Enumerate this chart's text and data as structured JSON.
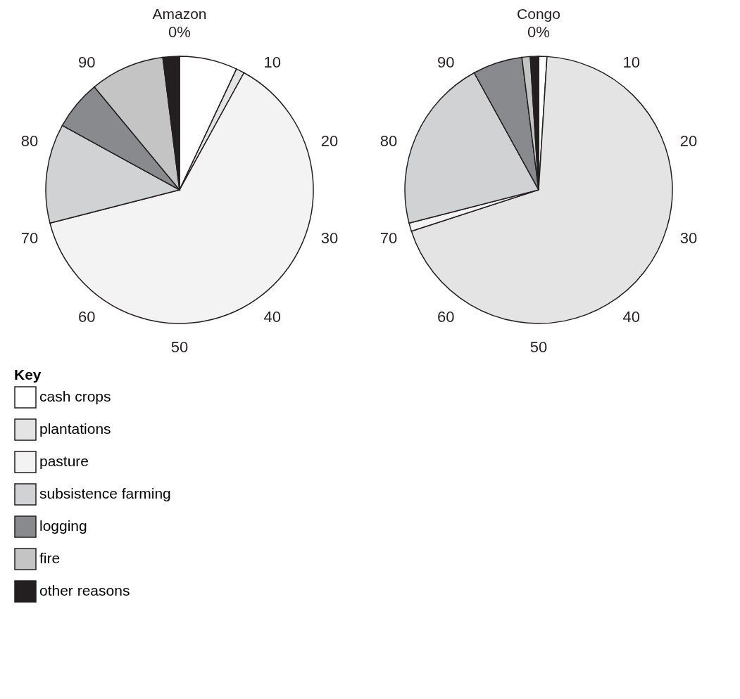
{
  "chart_data": [
    {
      "type": "pie",
      "title": "Amazon",
      "legend_title": "Key",
      "legend": "bottom left",
      "categories": [
        "cash crops",
        "plantations",
        "pasture",
        "subsistence farming",
        "logging",
        "fire",
        "other reasons"
      ],
      "values": [
        7,
        1,
        63,
        12,
        6,
        9,
        2
      ],
      "colors": [
        "#ffffff",
        "#e4e4e4",
        "#f3f3f3",
        "#d1d2d4",
        "#898a8e",
        "#c4c4c4",
        "#231f20"
      ],
      "annotations": [
        "0%",
        "10",
        "20",
        "30",
        "40",
        "50",
        "60",
        "70",
        "80",
        "90"
      ]
    },
    {
      "type": "pie",
      "title": "Congo",
      "values": [
        1,
        69,
        1,
        21,
        6,
        1,
        1
      ],
      "categories": [
        null,
        null,
        null,
        null,
        null,
        null,
        null
      ],
      "colors": [
        "#ffffff",
        "#e4e4e4",
        "#f3f3f3",
        "#d1d2d4",
        "#898a8e",
        "#c4c4c4",
        "#231f20"
      ],
      "annotations": [
        "0%",
        "10",
        "20",
        "30",
        "40",
        "50",
        "60",
        "70",
        "80",
        "90"
      ]
    }
  ]
}
